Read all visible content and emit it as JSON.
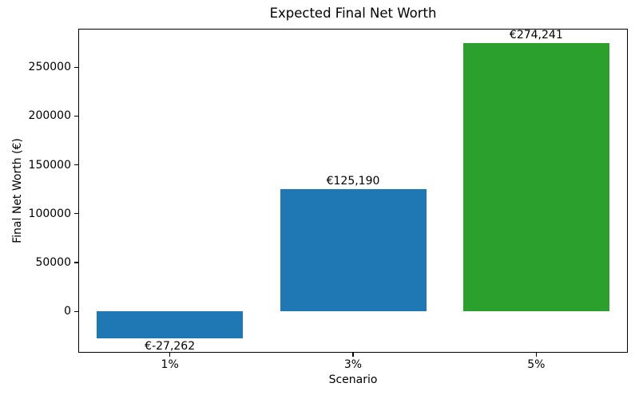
{
  "chart_data": {
    "type": "bar",
    "title": "Expected Final Net Worth",
    "xlabel": "Scenario",
    "ylabel": "Final Net Worth (€)",
    "categories": [
      "1%",
      "3%",
      "5%"
    ],
    "values": [
      -27262,
      125190,
      274241
    ],
    "bar_labels": [
      "€-27,262",
      "€125,190",
      "€274,241"
    ],
    "bar_colors": [
      "#1f77b4",
      "#1f77b4",
      "#2ca02c"
    ],
    "yticks": [
      0,
      50000,
      100000,
      150000,
      200000,
      250000
    ],
    "ytick_labels": [
      "0",
      "50000",
      "100000",
      "150000",
      "200000",
      "250000"
    ],
    "ylim": [
      -42340,
      289320
    ],
    "grid": false,
    "legend_position": "none",
    "spine_color": "#000000",
    "background_color": "#ffffff"
  }
}
